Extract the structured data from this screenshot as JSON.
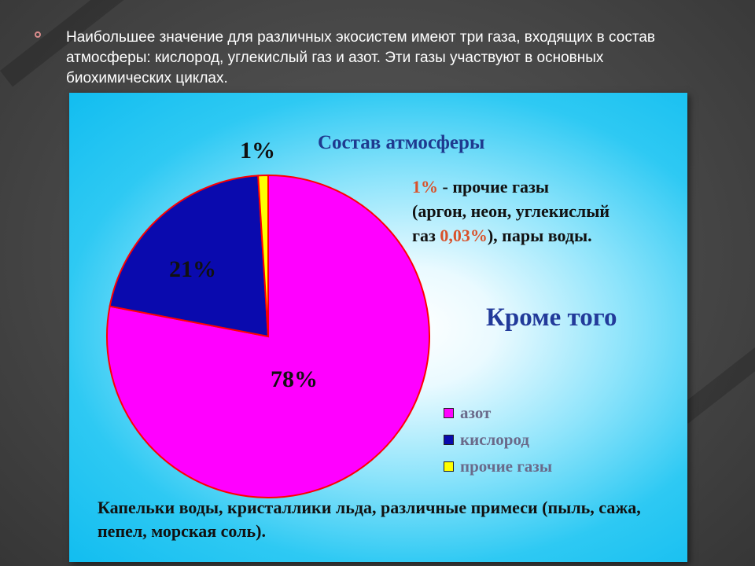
{
  "slide": {
    "intro_text": "Наибольшее значение для различных экосистем имеют три газа, входящих в состав атмосферы: кислород, углекислый газ и азот. Эти газы участвуют в основных биохимических циклах."
  },
  "chart_data": {
    "type": "pie",
    "title": "Состав атмосферы",
    "slices": [
      {
        "name": "азот",
        "value": 78,
        "label": "78%",
        "color": "#ff00ff"
      },
      {
        "name": "кислород",
        "value": 21,
        "label": "21%",
        "color": "#0a0aae"
      },
      {
        "name": "прочие газы",
        "value": 1,
        "label": "1%",
        "color": "#ffff00"
      }
    ],
    "legend_position": "bottom-right"
  },
  "note": {
    "pct": "1%",
    "line1": " - прочие газы",
    "line2": "(аргон, неон,  углекислый",
    "line3a": "газ ",
    "pct2": "0,03%",
    "line3b": "), пары воды."
  },
  "extra": {
    "krome": "Кроме того",
    "footer": "Капельки воды, кристаллики льда, различные примеси (пыль, сажа, пепел, морская соль)."
  },
  "colors": {
    "slice_border": "#ff0000",
    "title": "#1f3a8f",
    "panel": "#12bdf0"
  }
}
